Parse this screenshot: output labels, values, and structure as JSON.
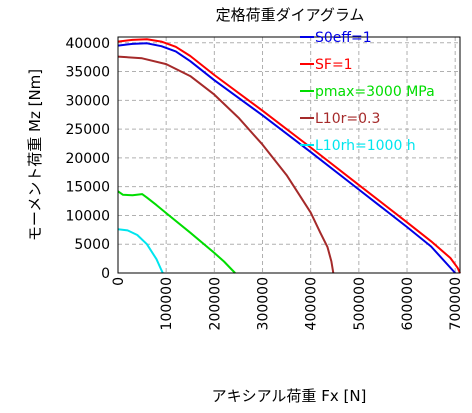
{
  "chart_data": {
    "type": "line",
    "title": "定格荷重ダイアグラム",
    "xlabel": "アキシアル荷重 Fx [N]",
    "ylabel": "モーメント荷重 Mz [Nm]",
    "xlim": [
      0,
      710000
    ],
    "ylim": [
      0,
      41000
    ],
    "x_ticks": [
      0,
      100000,
      200000,
      300000,
      400000,
      500000,
      600000,
      700000
    ],
    "y_ticks": [
      0,
      5000,
      10000,
      15000,
      20000,
      25000,
      30000,
      35000,
      40000
    ],
    "grid": true,
    "legend_position": "top-right",
    "series": [
      {
        "name": "S0eff=1",
        "color": "#0000e6",
        "points": [
          [
            0,
            39500
          ],
          [
            30000,
            39800
          ],
          [
            60000,
            39900
          ],
          [
            90000,
            39400
          ],
          [
            120000,
            38500
          ],
          [
            150000,
            36800
          ],
          [
            200000,
            33500
          ],
          [
            300000,
            27400
          ],
          [
            400000,
            21000
          ],
          [
            500000,
            14500
          ],
          [
            600000,
            8000
          ],
          [
            650000,
            4600
          ],
          [
            700000,
            0
          ]
        ]
      },
      {
        "name": "SF=1",
        "color": "#ff0000",
        "points": [
          [
            0,
            40200
          ],
          [
            30000,
            40500
          ],
          [
            60000,
            40600
          ],
          [
            90000,
            40200
          ],
          [
            120000,
            39300
          ],
          [
            150000,
            37700
          ],
          [
            200000,
            34400
          ],
          [
            300000,
            28200
          ],
          [
            400000,
            21800
          ],
          [
            500000,
            15300
          ],
          [
            600000,
            8800
          ],
          [
            650000,
            5500
          ],
          [
            690000,
            2600
          ],
          [
            705000,
            900
          ],
          [
            710000,
            0
          ]
        ]
      },
      {
        "name": "pmax=3000 MPa",
        "color": "#00dd00",
        "points": [
          [
            0,
            14200
          ],
          [
            10000,
            13600
          ],
          [
            30000,
            13500
          ],
          [
            50000,
            13700
          ],
          [
            60000,
            13100
          ],
          [
            80000,
            11800
          ],
          [
            100000,
            10400
          ],
          [
            150000,
            7000
          ],
          [
            200000,
            3500
          ],
          [
            220000,
            2000
          ],
          [
            235000,
            700
          ],
          [
            243000,
            0
          ]
        ]
      },
      {
        "name": "L10r=0.3",
        "color": "#a52a2a",
        "points": [
          [
            0,
            37600
          ],
          [
            50000,
            37300
          ],
          [
            100000,
            36300
          ],
          [
            150000,
            34200
          ],
          [
            200000,
            31000
          ],
          [
            250000,
            27000
          ],
          [
            300000,
            22300
          ],
          [
            350000,
            17000
          ],
          [
            400000,
            10500
          ],
          [
            420000,
            7000
          ],
          [
            435000,
            4500
          ],
          [
            443000,
            2000
          ],
          [
            447000,
            0
          ]
        ]
      },
      {
        "name": "L10rh=1000 h",
        "color": "#00e5ee",
        "points": [
          [
            0,
            7600
          ],
          [
            20000,
            7400
          ],
          [
            40000,
            6600
          ],
          [
            60000,
            5000
          ],
          [
            80000,
            2400
          ],
          [
            90000,
            500
          ],
          [
            93000,
            0
          ]
        ]
      }
    ]
  }
}
